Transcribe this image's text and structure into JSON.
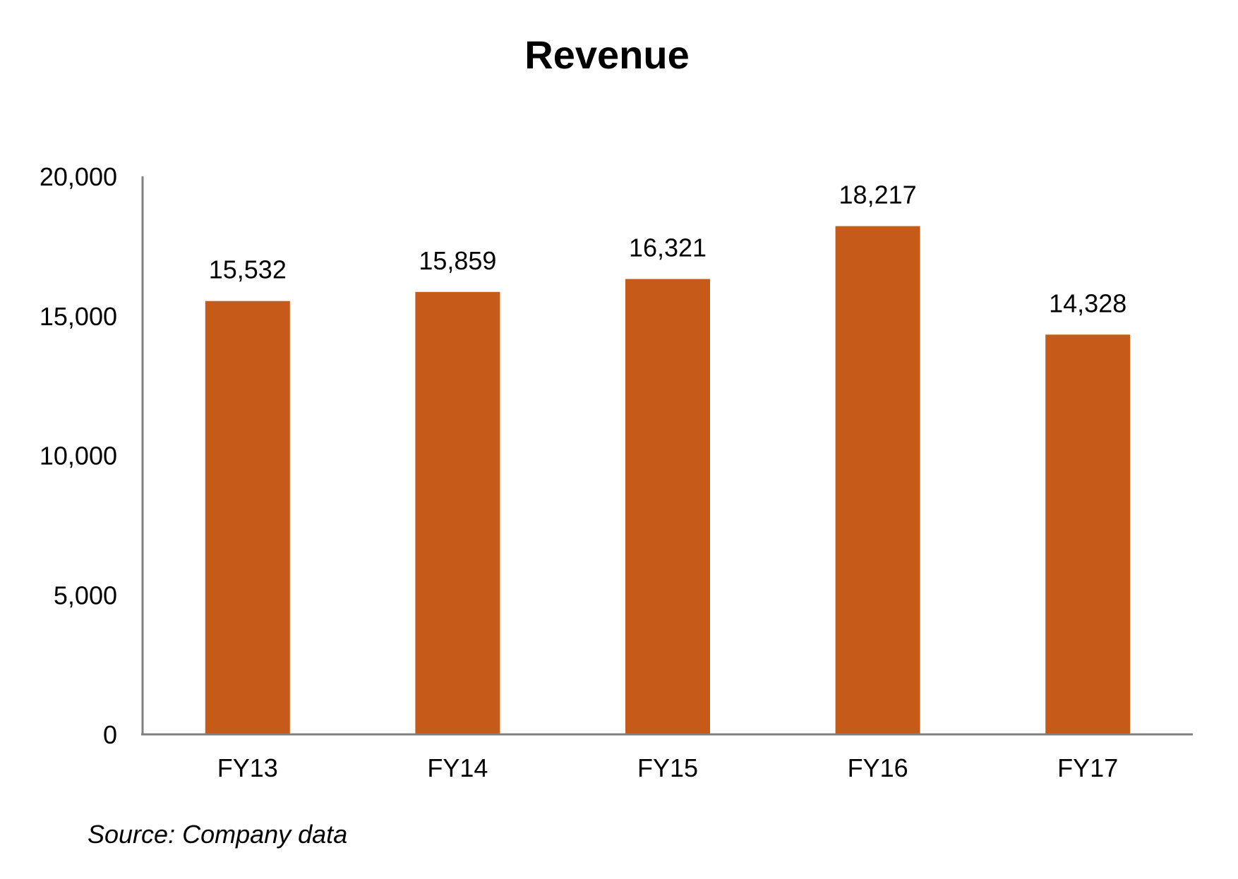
{
  "chart_data": {
    "type": "bar",
    "title": "Revenue",
    "categories": [
      "FY13",
      "FY14",
      "FY15",
      "FY16",
      "FY17"
    ],
    "values": [
      15532,
      15859,
      16321,
      18217,
      14328
    ],
    "value_labels": [
      "15,532",
      "15,859",
      "16,321",
      "18,217",
      "14,328"
    ],
    "xlabel": "",
    "ylabel": "",
    "ylim": [
      0,
      20000
    ],
    "yticks": [
      0,
      5000,
      10000,
      15000,
      20000
    ],
    "ytick_labels": [
      "0",
      "5,000",
      "10,000",
      "15,000",
      "20,000"
    ],
    "grid": false,
    "legend": "none",
    "bar_color": "#C55A19",
    "axis_color": "#808080"
  },
  "footnote": "Source: Company data"
}
